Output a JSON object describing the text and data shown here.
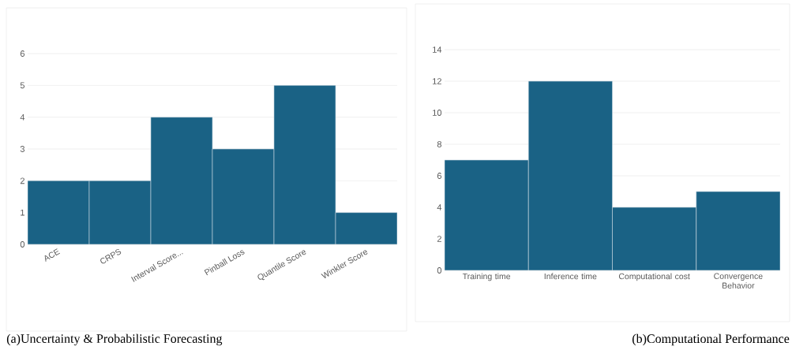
{
  "chart_data": [
    {
      "type": "bar",
      "categories": [
        "ACE",
        "CRPS",
        "Interval Score...",
        "Pinball Loss",
        "Quantile Score",
        "Winkler Score"
      ],
      "values": [
        2,
        2,
        4,
        3,
        5,
        1
      ],
      "color": "#1a6285",
      "ylim": [
        0,
        6
      ],
      "yticks": [
        0,
        1,
        2,
        3,
        4,
        5,
        6
      ],
      "grid": "y",
      "annotations": [
        "(a)Uncertainty & Probabilistic Forecasting"
      ]
    },
    {
      "type": "bar",
      "categories": [
        "Training time",
        "Inference time",
        "Computational cost",
        "Convergence Behavior"
      ],
      "values": [
        7,
        12,
        4,
        5
      ],
      "color": "#1a6285",
      "ylim": [
        0,
        14
      ],
      "yticks": [
        0,
        2,
        4,
        6,
        8,
        10,
        12,
        14
      ],
      "grid": "y",
      "annotations": [
        "(b)Computational Performance"
      ]
    }
  ]
}
